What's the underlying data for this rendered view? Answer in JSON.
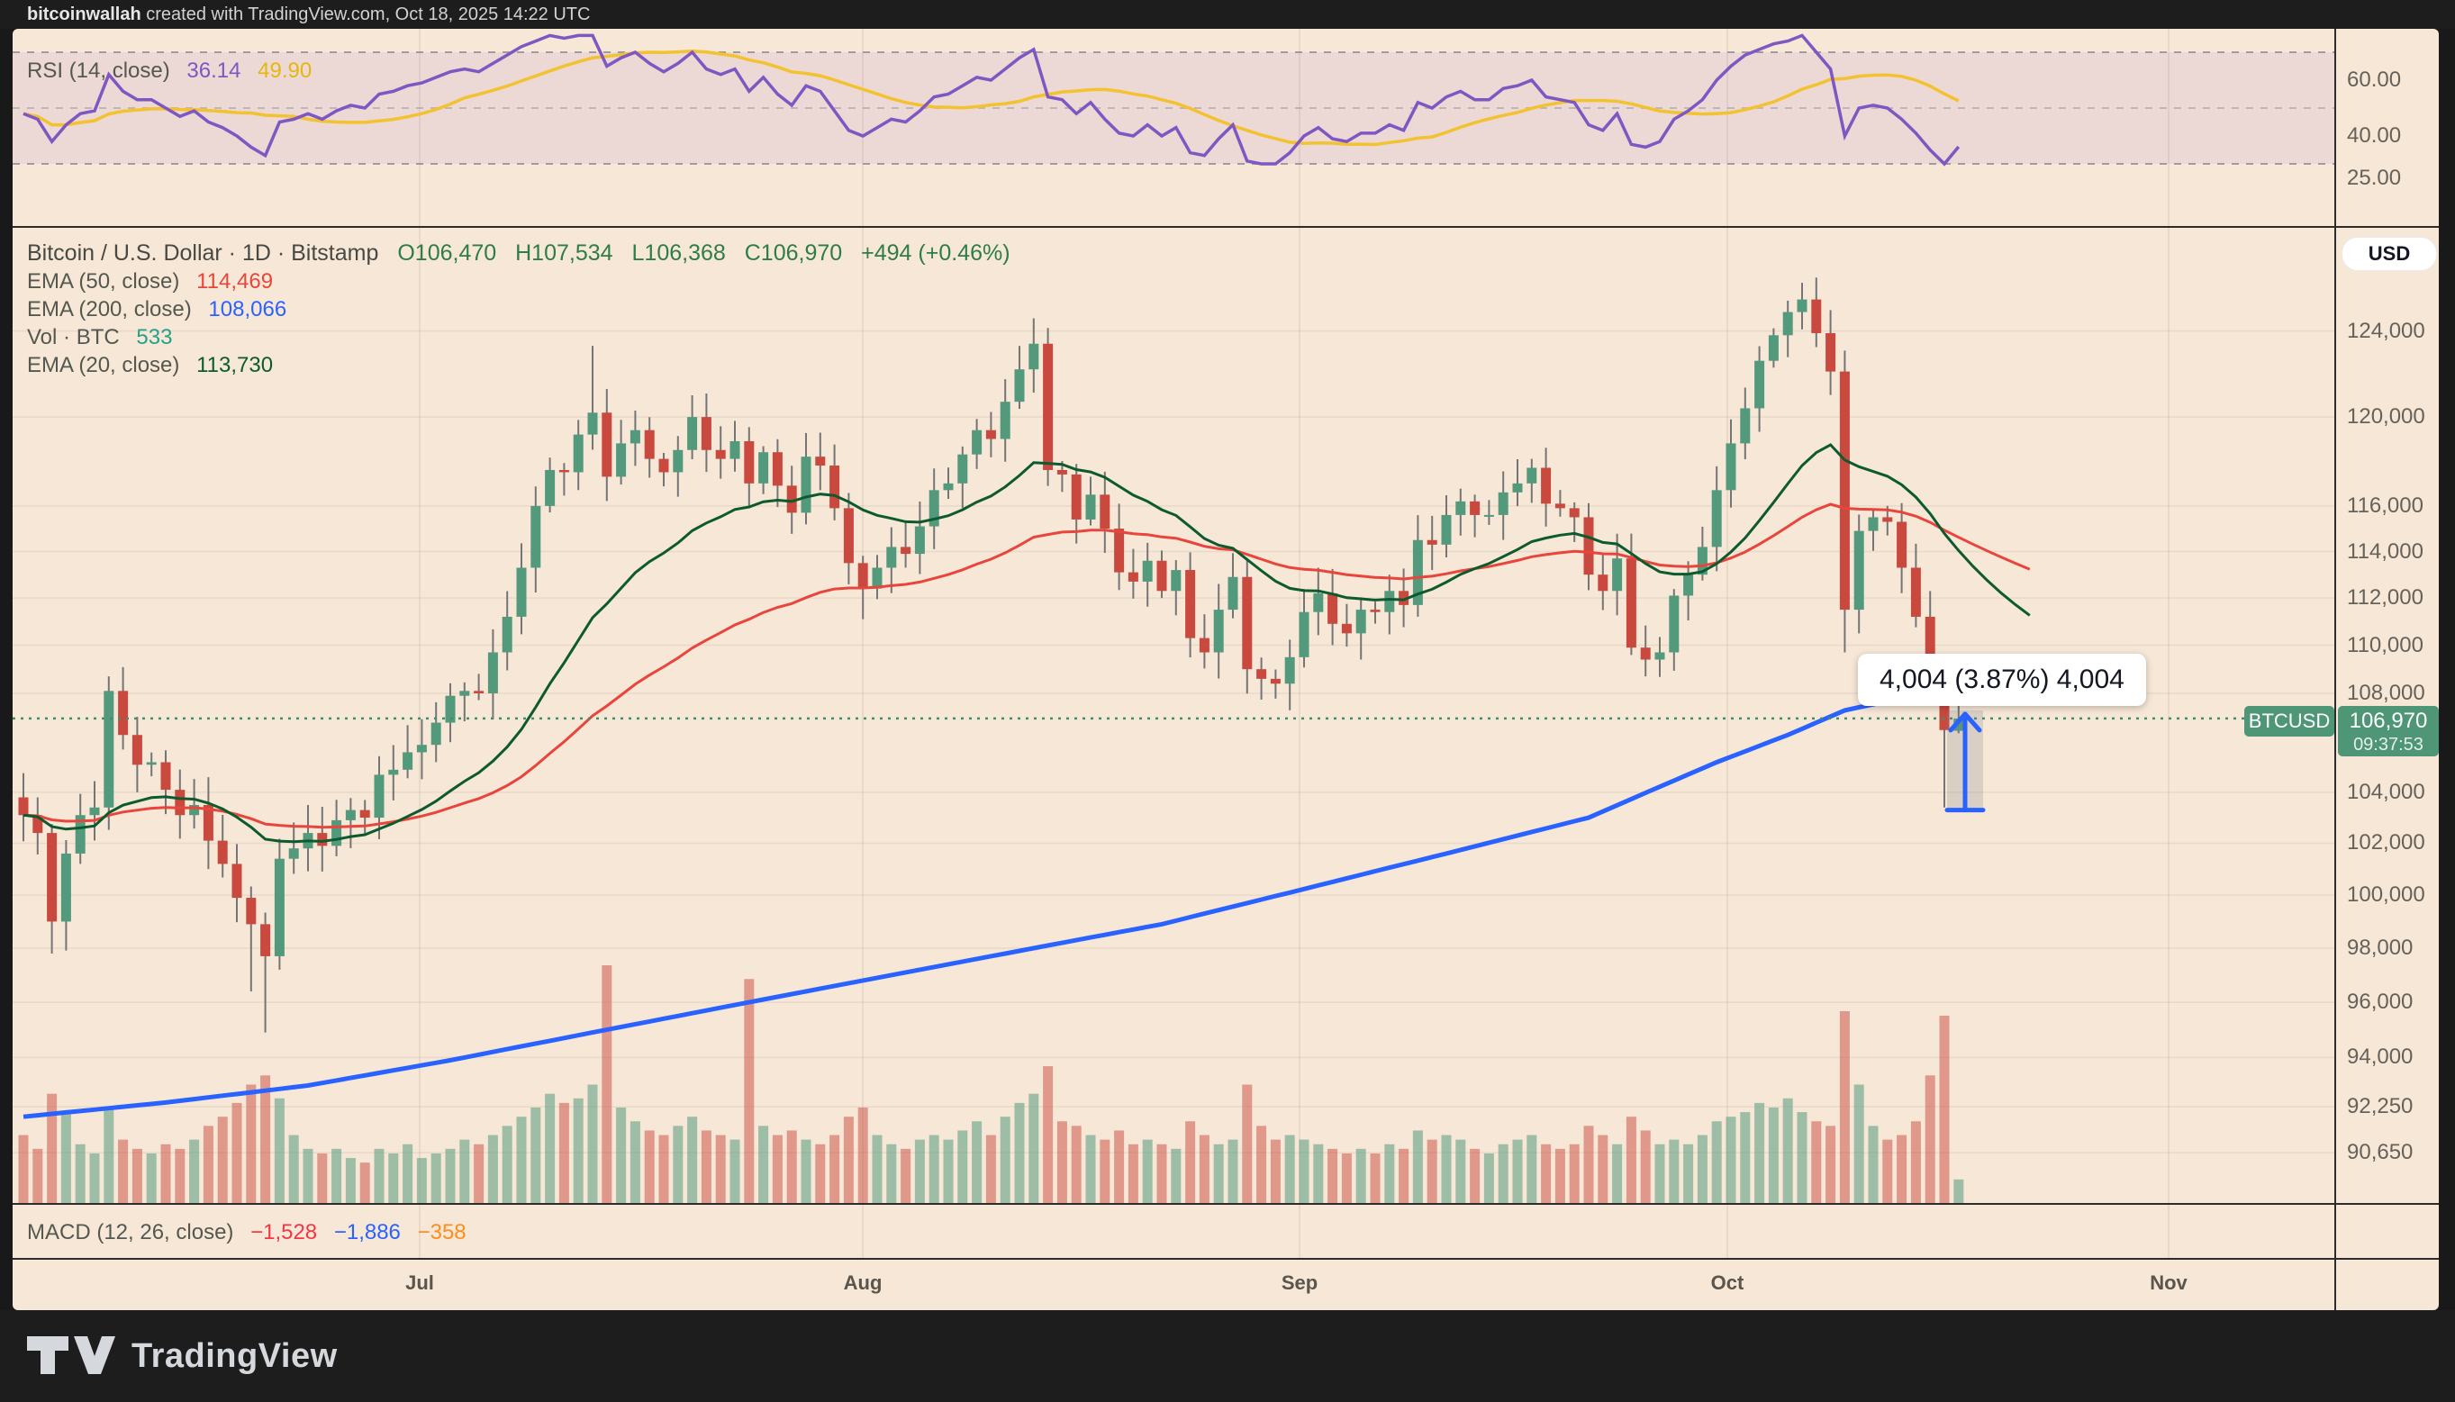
{
  "top_bar": {
    "author": "bitcoinwallah",
    "suffix": " created with TradingView.com, Oct 18, 2025 14:22 UTC"
  },
  "rsi_panel": {
    "label": "RSI (14, close)",
    "value": "36.14",
    "ma_value": "49.90",
    "scale": [
      {
        "text": "60.00",
        "value": 60
      },
      {
        "text": "40.00",
        "value": 40
      },
      {
        "text": "25.00",
        "value": 25
      }
    ]
  },
  "main_panel": {
    "title": "Bitcoin / U.S. Dollar · 1D · Bitstamp",
    "ohlc_open": "O106,470",
    "ohlc_high": "H107,534",
    "ohlc_low": "L106,368",
    "ohlc_close": "C106,970",
    "ohlc_change": "+494 (+0.46%)",
    "indicators": [
      {
        "label": "EMA (50, close)",
        "value": "114,469",
        "color": "#e8453c"
      },
      {
        "label": "EMA (200, close)",
        "value": "108,066",
        "color": "#2962ff"
      },
      {
        "label": "Vol · BTC",
        "value": "533",
        "color": "#26a08a"
      },
      {
        "label": "EMA (20, close)",
        "value": "113,730",
        "color": "#0d5a2e"
      }
    ],
    "currency_button": "USD",
    "symbol_badge": "BTCUSD",
    "price_badge": {
      "price": "106,970",
      "time": "09:37:53"
    },
    "tooltip": "4,004 (3.87%) 4,004"
  },
  "macd_panel": {
    "label": "MACD (12, 26, close)",
    "values": [
      {
        "text": "−1,528",
        "color": "#f23645"
      },
      {
        "text": "−1,886",
        "color": "#2962ff"
      },
      {
        "text": "−358",
        "color": "#ff8d1a"
      }
    ]
  },
  "footer": {
    "brand": "TradingView"
  },
  "chart_data": {
    "type": "candlestick",
    "symbol": "BTCUSD",
    "exchange": "Bitstamp",
    "timeframe": "1D",
    "price_scale": "log",
    "x_labels": [
      "Jul",
      "Aug",
      "Sep",
      "Oct",
      "Nov"
    ],
    "y_ticks": [
      {
        "text": "124,000",
        "price": 124000
      },
      {
        "text": "120,000",
        "price": 120000
      },
      {
        "text": "116,000",
        "price": 116000
      },
      {
        "text": "114,000",
        "price": 114000
      },
      {
        "text": "112,000",
        "price": 112000
      },
      {
        "text": "110,000",
        "price": 110000
      },
      {
        "text": "108,000",
        "price": 108000
      },
      {
        "text": "104,000",
        "price": 104000
      },
      {
        "text": "102,000",
        "price": 102000
      },
      {
        "text": "100,000",
        "price": 100000
      },
      {
        "text": "98,000",
        "price": 98000
      },
      {
        "text": "96,000",
        "price": 96000
      },
      {
        "text": "94,000",
        "price": 94000
      },
      {
        "text": "92,250",
        "price": 92250
      },
      {
        "text": "90,650",
        "price": 90650
      }
    ],
    "current_price": 106970,
    "current_time": "09:37:53",
    "first_open_k": 103.8,
    "closes_k": [
      103.1,
      102.4,
      99.0,
      101.6,
      103.1,
      103.4,
      108.1,
      106.3,
      105.1,
      105.2,
      104.1,
      103.1,
      103.5,
      102.1,
      101.2,
      99.9,
      98.9,
      97.7,
      101.4,
      101.8,
      102.4,
      101.9,
      102.9,
      103.3,
      103.0,
      104.7,
      104.9,
      105.6,
      105.9,
      106.8,
      107.9,
      108.1,
      108.0,
      109.7,
      111.2,
      113.3,
      116.0,
      117.6,
      117.5,
      119.2,
      120.2,
      117.3,
      118.8,
      119.4,
      118.1,
      117.5,
      118.5,
      120.0,
      118.5,
      118.1,
      118.9,
      117.0,
      118.4,
      116.9,
      115.7,
      118.2,
      117.8,
      115.9,
      113.5,
      112.4,
      113.3,
      114.2,
      113.9,
      115.1,
      116.7,
      117.0,
      118.3,
      119.4,
      119.0,
      120.7,
      122.2,
      123.4,
      117.6,
      117.4,
      115.4,
      116.5,
      115.0,
      113.1,
      112.7,
      113.6,
      112.3,
      113.2,
      110.3,
      109.7,
      111.5,
      112.9,
      109.0,
      108.6,
      108.4,
      109.5,
      111.4,
      112.2,
      110.9,
      110.5,
      111.5,
      111.4,
      112.3,
      111.7,
      114.5,
      114.3,
      115.6,
      116.2,
      115.6,
      115.6,
      116.6,
      117.0,
      117.7,
      116.1,
      115.9,
      115.5,
      113.0,
      112.3,
      113.7,
      109.9,
      109.4,
      109.7,
      112.1,
      113.0,
      114.2,
      116.7,
      118.8,
      120.4,
      122.6,
      123.8,
      124.9,
      125.5,
      123.9,
      122.1,
      111.5,
      114.9,
      115.5,
      115.3,
      113.3,
      111.2,
      108.7,
      106.5,
      106.97
    ],
    "open_overrides_k": {
      "136": 106.47
    },
    "high_overrides_k": {
      "6": 108.7,
      "40": 123.3,
      "47": 121.0,
      "71": 124.6,
      "106": 118.1,
      "125": 126.3,
      "135": 109.0,
      "136": 107.534
    },
    "low_overrides_k": {
      "2": 97.8,
      "16": 96.4,
      "17": 94.9,
      "18": 97.2,
      "59": 111.1,
      "114": 108.7,
      "128": 109.7,
      "135": 103.4,
      "136": 106.368
    },
    "volumes_btc": [
      1500,
      1200,
      2400,
      2000,
      1300,
      1100,
      2100,
      1400,
      1200,
      1100,
      1300,
      1200,
      1400,
      1700,
      1900,
      2200,
      2600,
      2800,
      2300,
      1500,
      1200,
      1100,
      1200,
      1000,
      900,
      1200,
      1100,
      1300,
      1000,
      1100,
      1200,
      1400,
      1300,
      1500,
      1700,
      1900,
      2100,
      2400,
      2200,
      2300,
      2600,
      5200,
      2100,
      1800,
      1600,
      1500,
      1700,
      1900,
      1600,
      1500,
      1400,
      4900,
      1700,
      1500,
      1600,
      1400,
      1300,
      1500,
      1900,
      2100,
      1500,
      1300,
      1200,
      1400,
      1500,
      1400,
      1600,
      1800,
      1500,
      1900,
      2200,
      2400,
      3000,
      1800,
      1700,
      1500,
      1400,
      1600,
      1300,
      1400,
      1300,
      1200,
      1800,
      1500,
      1300,
      1400,
      2600,
      1700,
      1400,
      1500,
      1400,
      1300,
      1200,
      1100,
      1200,
      1100,
      1300,
      1200,
      1600,
      1400,
      1500,
      1400,
      1200,
      1100,
      1300,
      1400,
      1500,
      1300,
      1200,
      1300,
      1700,
      1500,
      1300,
      1900,
      1600,
      1300,
      1400,
      1300,
      1500,
      1800,
      1900,
      2000,
      2200,
      2100,
      2300,
      2000,
      1800,
      1700,
      4200,
      2600,
      1700,
      1400,
      1500,
      1800,
      2800,
      4100,
      533
    ],
    "volume_max": 5200,
    "rsi": [
      48,
      46,
      38,
      44,
      48,
      49,
      62,
      56,
      53,
      53,
      50,
      47,
      49,
      45,
      43,
      40,
      36,
      33,
      45,
      46,
      48,
      46,
      49,
      51,
      50,
      55,
      56,
      58,
      59,
      61,
      63,
      64,
      63,
      66,
      69,
      72,
      74,
      76,
      75,
      76,
      76,
      65,
      68,
      70,
      66,
      63,
      66,
      70,
      64,
      62,
      64,
      56,
      61,
      55,
      51,
      58,
      56,
      49,
      42,
      40,
      43,
      46,
      45,
      49,
      54,
      55,
      58,
      61,
      60,
      64,
      68,
      71,
      54,
      53,
      48,
      52,
      46,
      41,
      40,
      44,
      40,
      43,
      34,
      33,
      39,
      44,
      31,
      30,
      30,
      34,
      40,
      43,
      39,
      38,
      41,
      41,
      44,
      42,
      52,
      50,
      54,
      56,
      53,
      53,
      57,
      58,
      60,
      54,
      53,
      52,
      44,
      42,
      48,
      37,
      36,
      38,
      46,
      49,
      53,
      60,
      65,
      69,
      71,
      73,
      74,
      76,
      70,
      64,
      40,
      50,
      51,
      50,
      46,
      41,
      35,
      30,
      36.14
    ],
    "rsi_ma_period": 14,
    "rsi_levels": {
      "upper": 70,
      "middle": 50,
      "lower": 30
    },
    "ema20_period": 20,
    "ema50_period": 50,
    "ema200_anchors_k": [
      [
        0,
        91.9
      ],
      [
        10,
        92.4
      ],
      [
        20,
        93.0
      ],
      [
        30,
        93.9
      ],
      [
        40,
        94.9
      ],
      [
        50,
        95.9
      ],
      [
        60,
        96.9
      ],
      [
        70,
        97.9
      ],
      [
        80,
        98.9
      ],
      [
        89,
        100.1
      ],
      [
        100,
        101.6
      ],
      [
        110,
        103.0
      ],
      [
        119,
        105.2
      ],
      [
        124,
        106.3
      ],
      [
        128,
        107.3
      ],
      [
        132,
        107.8
      ],
      [
        137,
        108.0
      ],
      [
        141,
        108.07
      ]
    ],
    "measure_tool": {
      "from_k": 103.3,
      "to_k": 107.3,
      "label": "4,004 (3.87%) 4,004"
    },
    "colors": {
      "background": "#f6e7d7",
      "up": "#539a7d",
      "down": "#c9493e",
      "wick": "#757575",
      "vol_up": "rgba(83,154,125,0.55)",
      "vol_down": "rgba(201,73,62,0.5)",
      "ema20": "#0d5a2e",
      "ema50": "#e8453c",
      "ema200": "#2962ff",
      "rsi": "#7e57c2",
      "rsi_ma": "#f2c230",
      "price_line": "#3f8f6d",
      "badge": "#4f9677",
      "grid": "rgba(80,60,40,0.08)",
      "band": "rgba(146,86,190,0.10)",
      "dashed_level": "#8a8d96",
      "measure": "#2962ff",
      "measure_band": "rgba(120,123,134,0.22)"
    }
  }
}
